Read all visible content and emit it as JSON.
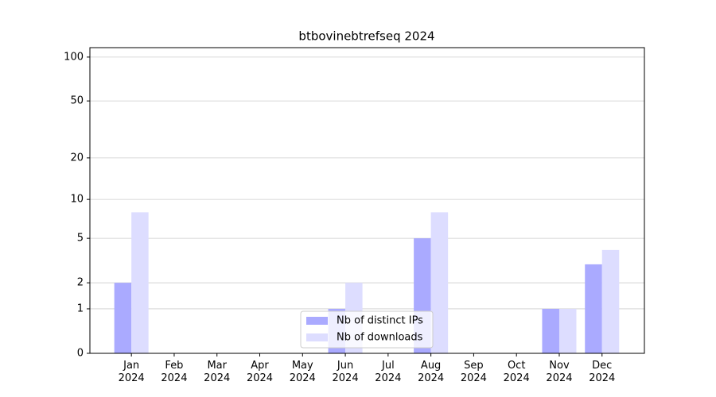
{
  "chart_data": {
    "type": "bar",
    "title": "btbovinebtrefseq 2024",
    "categories": [
      "Jan\n2024",
      "Feb\n2024",
      "Mar\n2024",
      "Apr\n2024",
      "May\n2024",
      "Jun\n2024",
      "Jul\n2024",
      "Aug\n2024",
      "Sep\n2024",
      "Oct\n2024",
      "Nov\n2024",
      "Dec\n2024"
    ],
    "series": [
      {
        "name": "Nb of distinct IPs",
        "color": "#aaaaff",
        "values": [
          2,
          0,
          0,
          0,
          0,
          1,
          0,
          5,
          0,
          0,
          1,
          3
        ]
      },
      {
        "name": "Nb of downloads",
        "color": "#ddddff",
        "values": [
          8,
          0,
          0,
          0,
          0,
          2,
          0,
          8,
          0,
          0,
          1,
          4
        ]
      }
    ],
    "yscale": "log1p",
    "ylim": [
      0,
      116
    ],
    "yticks": [
      0,
      1,
      2,
      5,
      10,
      20,
      50,
      100
    ],
    "grid": true,
    "legend": "lower center"
  }
}
